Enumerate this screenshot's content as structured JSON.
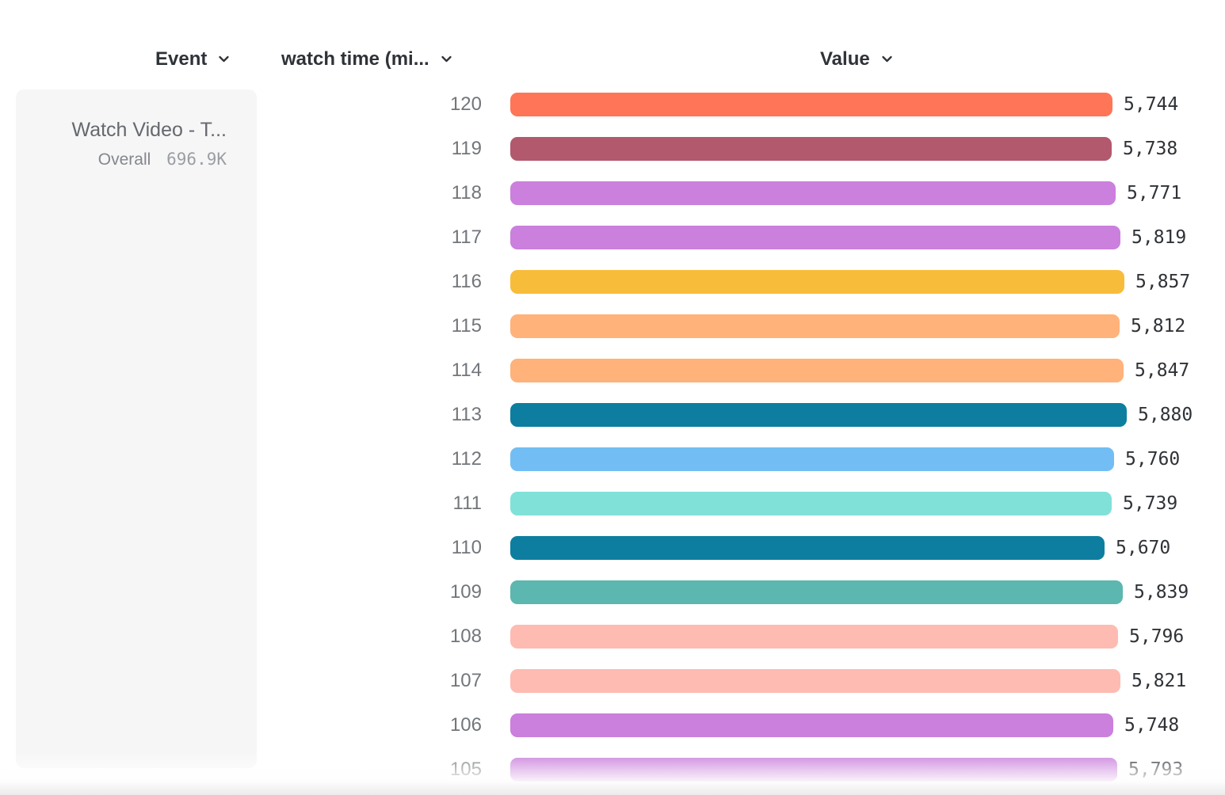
{
  "header": {
    "columns": [
      {
        "id": "event",
        "label": "Event"
      },
      {
        "id": "watch-time",
        "label": "watch time (mi..."
      },
      {
        "id": "value",
        "label": "Value"
      }
    ]
  },
  "legend": {
    "event_name": "Watch Video - T...",
    "overall_label": "Overall",
    "overall_value": "696.9K"
  },
  "chart_data": {
    "type": "bar",
    "orientation": "horizontal",
    "category_column": "watch time (mi...",
    "value_column": "Value",
    "categories": [
      "120",
      "119",
      "118",
      "117",
      "116",
      "115",
      "114",
      "113",
      "112",
      "111",
      "110",
      "109",
      "108",
      "107",
      "106",
      "105"
    ],
    "values": [
      5744,
      5738,
      5771,
      5819,
      5857,
      5812,
      5847,
      5880,
      5760,
      5739,
      5670,
      5839,
      5796,
      5821,
      5748,
      5793
    ],
    "value_labels": [
      "5,744",
      "5,738",
      "5,771",
      "5,819",
      "5,857",
      "5,812",
      "5,847",
      "5,880",
      "5,760",
      "5,739",
      "5,670",
      "5,839",
      "5,796",
      "5,821",
      "5,748",
      "5,793"
    ],
    "colors": [
      "#FF7557",
      "#B2596E",
      "#CA80DC",
      "#CA80DC",
      "#F8BC3B",
      "#FFB27A",
      "#FFB27A",
      "#0D7EA0",
      "#72BEF4",
      "#80E1D9",
      "#0D7EA0",
      "#5BB7AF",
      "#FEBBB2",
      "#FEBBB2",
      "#CA80DC",
      "#CA80DC"
    ],
    "xlim": [
      0,
      5880
    ],
    "grid": false,
    "legend_position": "left"
  },
  "ui_colors": {
    "header_text": "#2f3338",
    "row_label_text": "#72767a",
    "value_text": "#2f3236",
    "legend_card_bg": "#f6f6f7"
  }
}
